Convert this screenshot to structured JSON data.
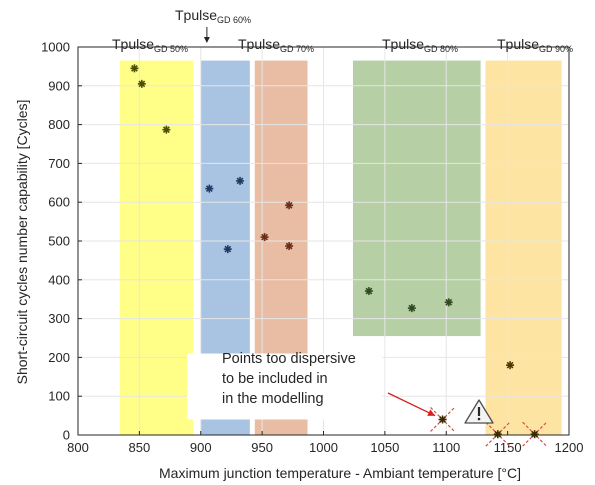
{
  "chart_data": {
    "type": "scatter",
    "xlabel": "Maximum junction temperature - Ambiant temperature [°C]",
    "ylabel": "Short-circuit cycles number capability [Cycles]",
    "xlim": [
      800,
      1200
    ],
    "ylim": [
      0,
      1000
    ],
    "xticks": [
      800,
      850,
      900,
      950,
      1000,
      1050,
      1100,
      1150,
      1200
    ],
    "yticks": [
      0,
      100,
      200,
      300,
      400,
      500,
      600,
      700,
      800,
      900,
      1000
    ],
    "grid": true,
    "bands": [
      {
        "label": "Tpulse",
        "sub": "GD 50%",
        "x": [
          834,
          894
        ],
        "y": [
          0,
          965
        ],
        "color": "#ffff88"
      },
      {
        "label": "Tpulse",
        "sub": "GD 60%",
        "x": [
          900,
          940
        ],
        "y": [
          0,
          965
        ],
        "color": "#a9c4e3"
      },
      {
        "label": "Tpulse",
        "sub": "GD 70%",
        "x": [
          944,
          987
        ],
        "y": [
          0,
          965
        ],
        "color": "#e9bda3"
      },
      {
        "label": "Tpulse",
        "sub": "GD 80%",
        "x": [
          1024,
          1128
        ],
        "y": [
          255,
          965
        ],
        "color": "#b7cfa4"
      },
      {
        "label": "Tpulse",
        "sub": "GD 90%",
        "x": [
          1132,
          1194
        ],
        "y": [
          0,
          965
        ],
        "color": "#fde4a3"
      }
    ],
    "series": [
      {
        "points": [
          [
            846,
            945
          ],
          [
            852,
            905
          ],
          [
            872,
            787
          ]
        ],
        "color": "#4d4d00"
      },
      {
        "points": [
          [
            907,
            635
          ],
          [
            932,
            655
          ],
          [
            922,
            479
          ]
        ],
        "color": "#1f3b63"
      },
      {
        "points": [
          [
            952,
            510
          ],
          [
            972,
            592
          ],
          [
            972,
            487
          ]
        ],
        "color": "#6b2e1a"
      },
      {
        "points": [
          [
            1037,
            371
          ],
          [
            1072,
            327
          ],
          [
            1102,
            342
          ]
        ],
        "color": "#2e4a22"
      },
      {
        "points": [
          [
            1152,
            180
          ]
        ],
        "color": "#4d3800"
      }
    ],
    "excluded_points": [
      [
        1097,
        40
      ],
      [
        1142,
        2
      ],
      [
        1172,
        2
      ]
    ],
    "annotation": {
      "lines": [
        "Points too dispersive",
        "to be included in",
        "in the modelling"
      ]
    }
  }
}
